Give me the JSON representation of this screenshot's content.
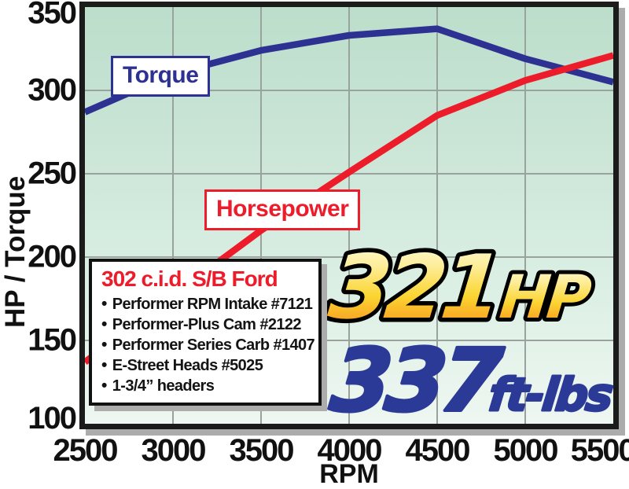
{
  "chart_data": {
    "type": "line",
    "x": [
      2500,
      3000,
      3500,
      4000,
      4500,
      5000,
      5500
    ],
    "series": [
      {
        "name": "Torque",
        "color": "#2d3192",
        "values": [
          287,
          310,
          324,
          333,
          337,
          319,
          305
        ]
      },
      {
        "name": "Horsepower",
        "color": "#ed1c2b",
        "values": [
          137,
          177,
          216,
          251,
          285,
          306,
          321
        ]
      }
    ],
    "title": "",
    "xlabel": "RPM",
    "ylabel": "HP / Torque",
    "xlim": [
      2500,
      5500
    ],
    "ylim": [
      100,
      350
    ],
    "xticks": [
      2500,
      3000,
      3500,
      4000,
      4500,
      5000,
      5500
    ],
    "yticks": [
      100,
      150,
      200,
      250,
      300,
      350
    ],
    "grid": true,
    "legend_position": "inline-labels"
  },
  "curve_labels": {
    "torque": "Torque",
    "horsepower": "Horsepower"
  },
  "spec_box": {
    "title": "302 c.i.d. S/B Ford",
    "items": [
      "Performer RPM Intake #7121",
      "Performer-Plus Cam #2122",
      "Performer Series Carb #1407",
      "E-Street Heads #5025",
      "1-3/4” headers"
    ]
  },
  "results": {
    "hp_value": "321",
    "hp_unit": "HP",
    "tq_value": "337",
    "tq_unit": "ft-lbs"
  },
  "icons": {
    "bullet": "•"
  },
  "colors": {
    "torque_line": "#2d3192",
    "horsepower_line": "#ed1c2b",
    "result_gold_top": "#fffbe0",
    "result_gold_bottom": "#f5881d",
    "result_blue": "#2b3a96",
    "plot_bg_top": "#bcdecb",
    "plot_bg_bottom": "#eef7f1",
    "gridline": "#9aa29d",
    "frame": "#1b1b1b",
    "shadow": "#acacac"
  }
}
